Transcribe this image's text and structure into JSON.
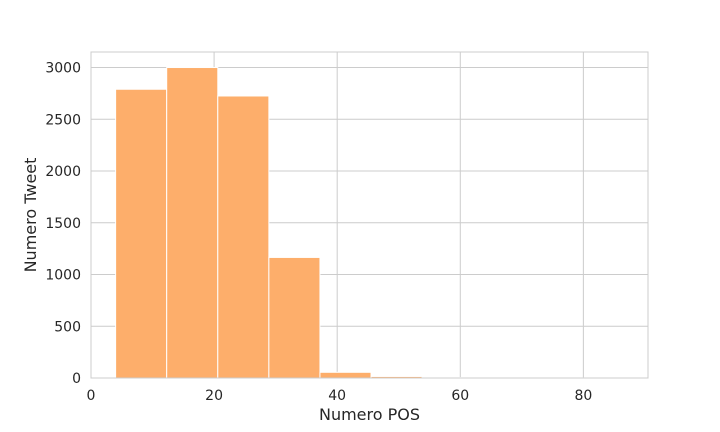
{
  "chart_data": {
    "type": "bar",
    "subtype": "histogram",
    "xlabel": "Numero POS",
    "ylabel": "Numero Tweet",
    "xlim": [
      0,
      90.5
    ],
    "ylim": [
      0,
      3150
    ],
    "x_ticks": [
      0,
      20,
      40,
      60,
      80
    ],
    "y_ticks": [
      0,
      500,
      1000,
      1500,
      2000,
      2500,
      3000
    ],
    "grid": true,
    "bar_color": "#fdae6b",
    "gridline_color": "#cccccc",
    "bins": [
      {
        "x0": 4.0,
        "x1": 12.3,
        "count": 2790
      },
      {
        "x0": 12.3,
        "x1": 20.6,
        "count": 3000
      },
      {
        "x0": 20.6,
        "x1": 28.9,
        "count": 2725
      },
      {
        "x0": 28.9,
        "x1": 37.2,
        "count": 1165
      },
      {
        "x0": 37.2,
        "x1": 45.5,
        "count": 55
      },
      {
        "x0": 45.5,
        "x1": 53.8,
        "count": 15
      },
      {
        "x0": 53.8,
        "x1": 62.1,
        "count": 4
      },
      {
        "x0": 62.1,
        "x1": 70.4,
        "count": 2
      },
      {
        "x0": 70.4,
        "x1": 78.7,
        "count": 1
      },
      {
        "x0": 78.7,
        "x1": 87.0,
        "count": 1
      }
    ]
  }
}
